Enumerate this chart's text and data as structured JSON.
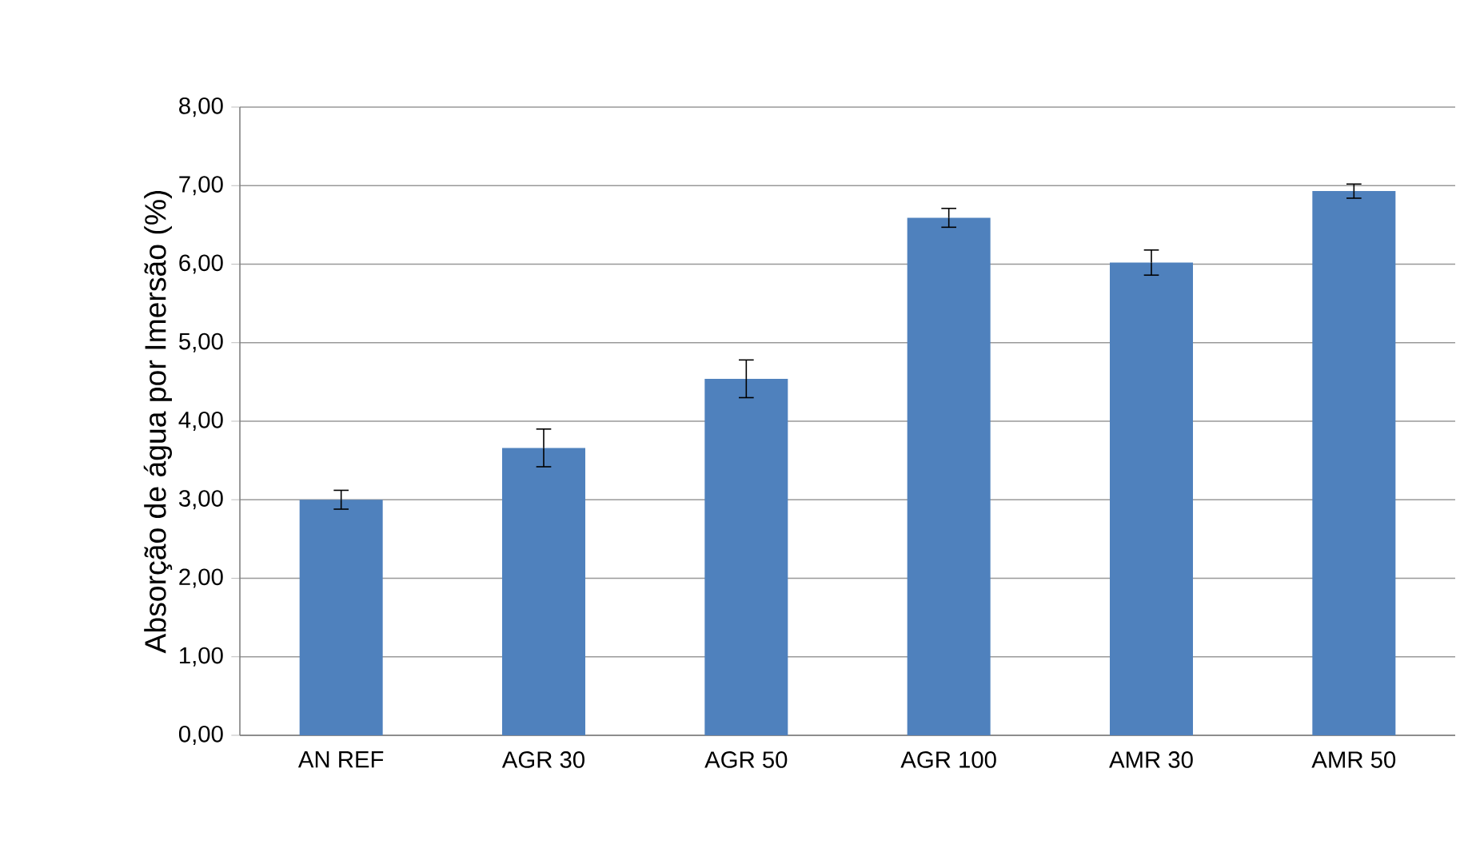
{
  "chart_data": {
    "type": "bar",
    "ylabel": "Absorção de água por Imersão (%)",
    "categories": [
      "AN REF",
      "AGR 30",
      "AGR 50",
      "AGR 100",
      "AMR 30",
      "AMR 50"
    ],
    "values": [
      3.0,
      3.66,
      4.54,
      6.59,
      6.02,
      6.93
    ],
    "errors": [
      0.12,
      0.24,
      0.24,
      0.12,
      0.16,
      0.09
    ],
    "color": "#4f81bd",
    "ylim": [
      0,
      8
    ],
    "yticks": [
      {
        "value": 0,
        "label": "0,00"
      },
      {
        "value": 1,
        "label": "1,00"
      },
      {
        "value": 2,
        "label": "2,00"
      },
      {
        "value": 3,
        "label": "3,00"
      },
      {
        "value": 4,
        "label": "4,00"
      },
      {
        "value": 5,
        "label": "5,00"
      },
      {
        "value": 6,
        "label": "6,00"
      },
      {
        "value": 7,
        "label": "7,00"
      },
      {
        "value": 8,
        "label": "8,00"
      }
    ],
    "grid": "y"
  }
}
